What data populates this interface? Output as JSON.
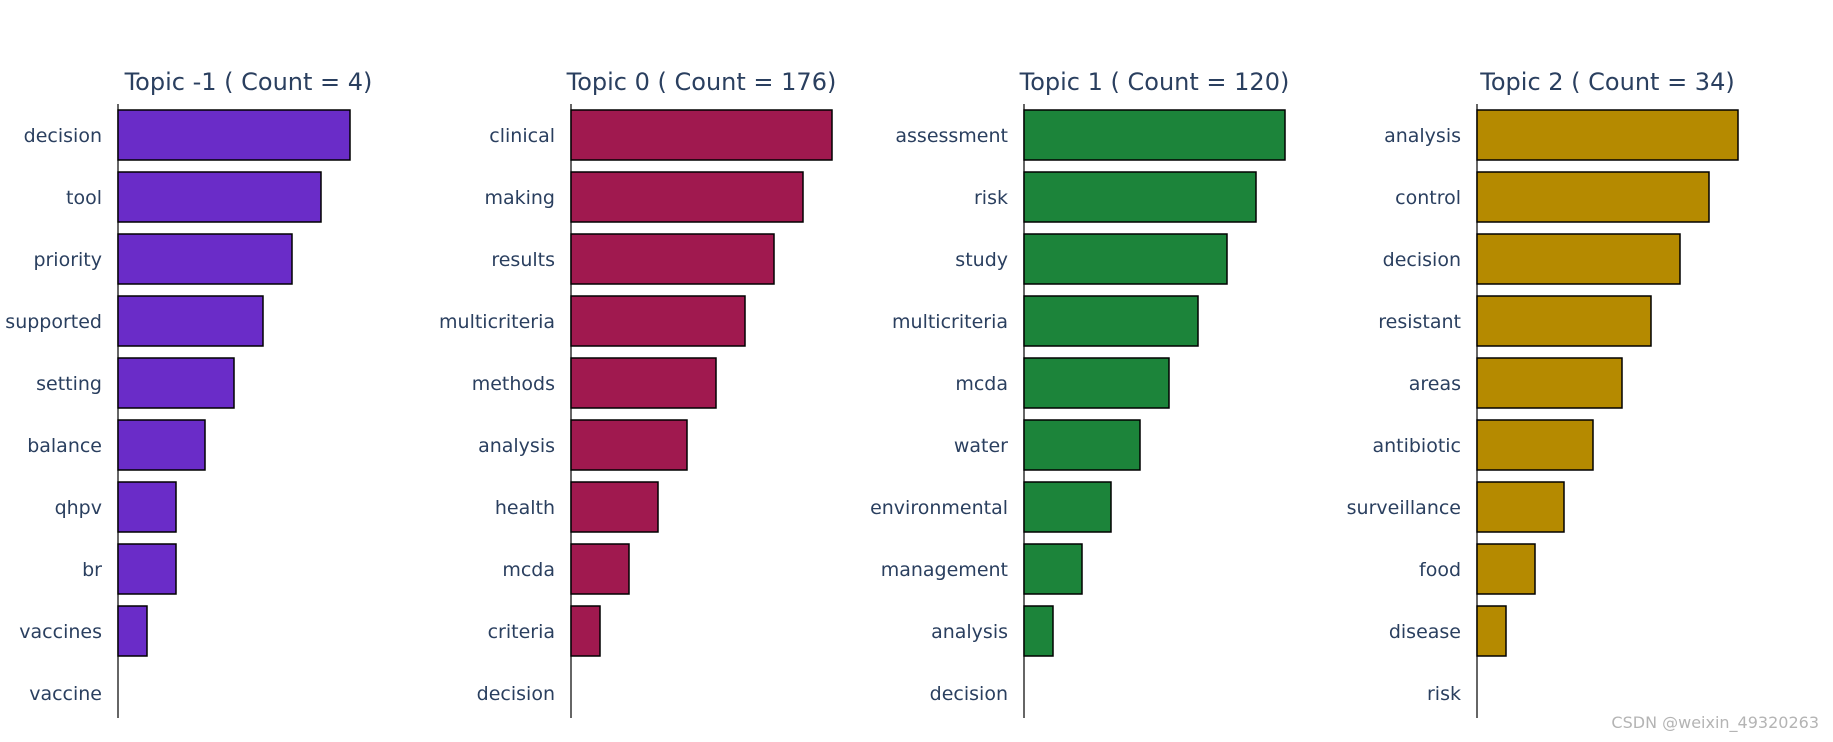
{
  "chart_data": [
    {
      "type": "bar",
      "orientation": "horizontal",
      "title": "Topic -1 ( Count = 4)",
      "color": "#6A2CC8",
      "categories": [
        "decision",
        "tool",
        "priority",
        "supported",
        "setting",
        "balance",
        "qhpv",
        "br",
        "vaccines",
        "vaccine"
      ],
      "values": [
        8,
        7,
        6,
        5,
        4,
        3,
        2,
        2,
        1,
        0
      ]
    },
    {
      "type": "bar",
      "orientation": "horizontal",
      "title": "Topic 0 ( Count = 176)",
      "color": "#A0194F",
      "categories": [
        "clinical",
        "making",
        "results",
        "multicriteria",
        "methods",
        "analysis",
        "health",
        "mcda",
        "criteria",
        "decision"
      ],
      "values": [
        9,
        8,
        7,
        6,
        5,
        4,
        3,
        2,
        1,
        0
      ]
    },
    {
      "type": "bar",
      "orientation": "horizontal",
      "title": "Topic 1 ( Count = 120)",
      "color": "#1C843A",
      "categories": [
        "assessment",
        "risk",
        "study",
        "multicriteria",
        "mcda",
        "water",
        "environmental",
        "management",
        "analysis",
        "decision"
      ],
      "values": [
        9,
        8,
        7,
        6,
        5,
        4,
        3,
        2,
        1,
        0
      ]
    },
    {
      "type": "bar",
      "orientation": "horizontal",
      "title": "Topic 2 ( Count = 34)",
      "color": "#B58A00",
      "categories": [
        "analysis",
        "control",
        "decision",
        "resistant",
        "areas",
        "antibiotic",
        "surveillance",
        "food",
        "disease",
        "risk"
      ],
      "values": [
        9,
        8,
        7,
        6,
        5,
        4,
        3,
        2,
        1,
        0
      ]
    }
  ],
  "watermark": "CSDN @weixin_49320263"
}
